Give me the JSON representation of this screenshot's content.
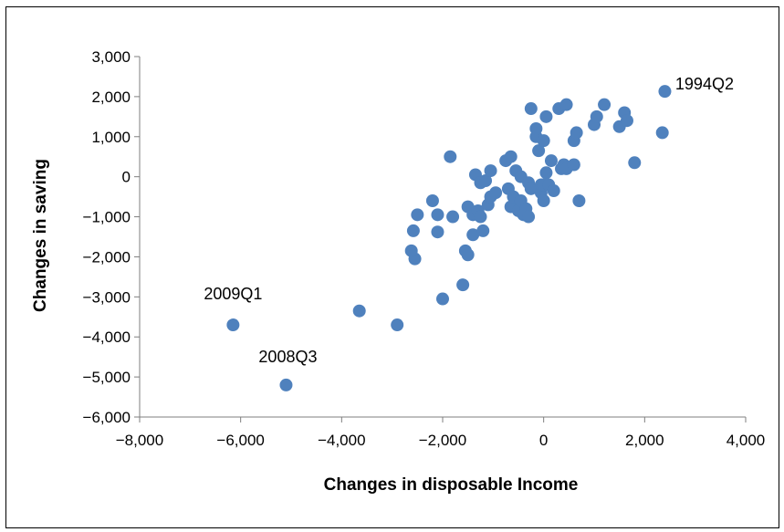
{
  "chart_data": {
    "type": "scatter",
    "xlabel": "Changes in disposable Income",
    "ylabel": "Changes in saving",
    "xlim": [
      -8000,
      4000
    ],
    "ylim": [
      -6000,
      3000
    ],
    "xticks": [
      "−8,000",
      "−6,000",
      "−4,000",
      "−2,000",
      "0",
      "2,000",
      "4,000"
    ],
    "yticks": [
      "3,000",
      "2,000",
      "1,000",
      "0",
      "−1,000",
      "−2,000",
      "−3,000",
      "−4,000",
      "−5,000",
      "−6,000"
    ],
    "grid": false,
    "legend": "none",
    "marker_color": "#4F81BD",
    "annotations": [
      {
        "label": "2009Q1",
        "x": -6150,
        "y": -3700
      },
      {
        "label": "2008Q3",
        "x": -5100,
        "y": -5200
      },
      {
        "label": "1994Q2",
        "x": 2390,
        "y": 2130
      }
    ],
    "points": [
      [
        -6150,
        -3700
      ],
      [
        -5100,
        -5200
      ],
      [
        -3650,
        -3350
      ],
      [
        -2900,
        -3700
      ],
      [
        -2550,
        -2050
      ],
      [
        -2580,
        -1350
      ],
      [
        -2620,
        -1850
      ],
      [
        -2500,
        -950
      ],
      [
        -2200,
        -600
      ],
      [
        -2100,
        -950
      ],
      [
        -2100,
        -1380
      ],
      [
        -2000,
        -3050
      ],
      [
        -1850,
        500
      ],
      [
        -1800,
        -1000
      ],
      [
        -1600,
        -2700
      ],
      [
        -1550,
        -1850
      ],
      [
        -1500,
        -1950
      ],
      [
        -1500,
        -750
      ],
      [
        -1400,
        -950
      ],
      [
        -1400,
        -1450
      ],
      [
        -1350,
        50
      ],
      [
        -1300,
        -850
      ],
      [
        -1250,
        -150
      ],
      [
        -1250,
        -1000
      ],
      [
        -1200,
        -1350
      ],
      [
        -1150,
        -100
      ],
      [
        -1100,
        -700
      ],
      [
        -1050,
        150
      ],
      [
        -1050,
        -500
      ],
      [
        -950,
        -400
      ],
      [
        -750,
        400
      ],
      [
        -700,
        -300
      ],
      [
        -650,
        500
      ],
      [
        -650,
        -750
      ],
      [
        -600,
        -500
      ],
      [
        -550,
        150
      ],
      [
        -500,
        -850
      ],
      [
        -450,
        0
      ],
      [
        -450,
        -600
      ],
      [
        -400,
        -950
      ],
      [
        -350,
        -800
      ],
      [
        -300,
        -150
      ],
      [
        -300,
        -1000
      ],
      [
        -250,
        -300
      ],
      [
        -250,
        1700
      ],
      [
        -150,
        1000
      ],
      [
        -150,
        1200
      ],
      [
        -100,
        650
      ],
      [
        -50,
        -400
      ],
      [
        -50,
        -200
      ],
      [
        0,
        900
      ],
      [
        0,
        -200
      ],
      [
        0,
        -600
      ],
      [
        50,
        1500
      ],
      [
        50,
        100
      ],
      [
        100,
        -200
      ],
      [
        150,
        400
      ],
      [
        200,
        -350
      ],
      [
        300,
        1700
      ],
      [
        350,
        200
      ],
      [
        400,
        300
      ],
      [
        450,
        1800
      ],
      [
        450,
        200
      ],
      [
        600,
        300
      ],
      [
        600,
        900
      ],
      [
        650,
        1100
      ],
      [
        700,
        -600
      ],
      [
        1000,
        1300
      ],
      [
        1050,
        1500
      ],
      [
        1200,
        1800
      ],
      [
        1500,
        1250
      ],
      [
        1600,
        1600
      ],
      [
        1650,
        1400
      ],
      [
        1800,
        350
      ],
      [
        2350,
        1100
      ],
      [
        2400,
        2130
      ]
    ]
  }
}
